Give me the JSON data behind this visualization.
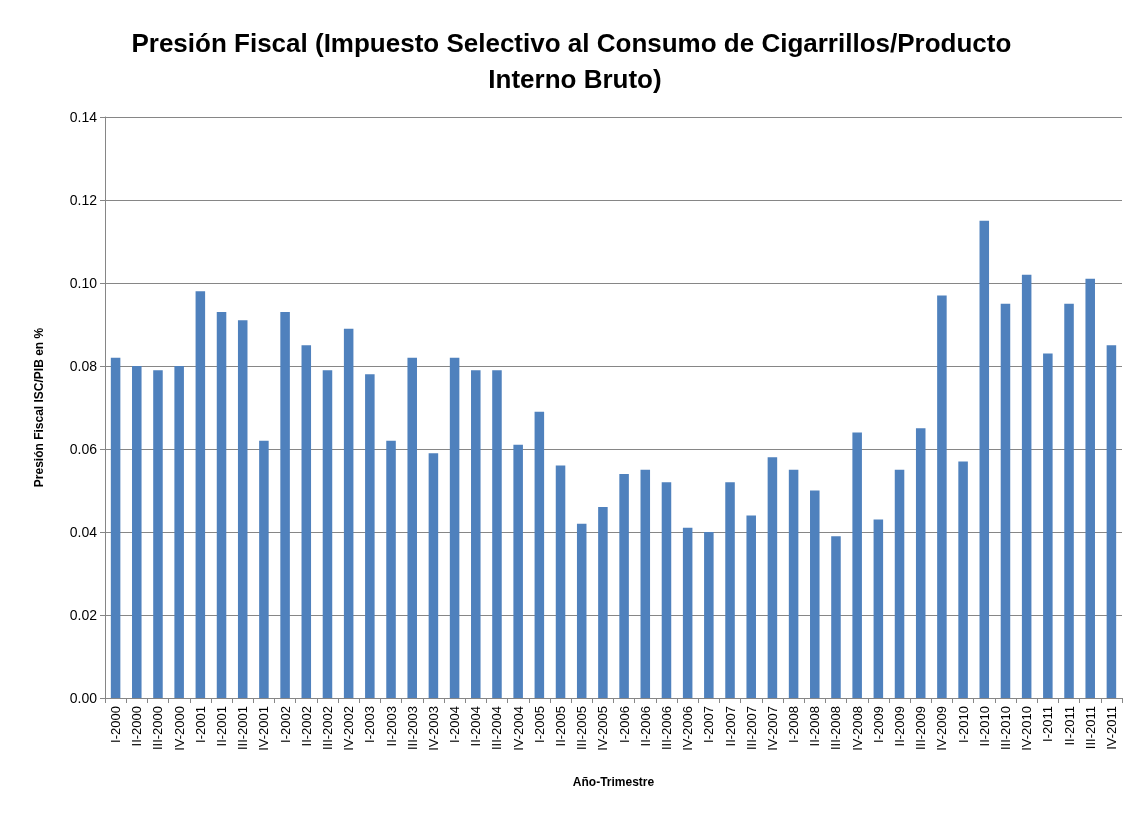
{
  "chart_data": {
    "type": "bar",
    "title": "Presión Fiscal (Impuesto Selectivo al Consumo de Cigarrillos/Producto Interno Bruto)",
    "xlabel": "Año-Trimestre",
    "ylabel": "Presión Fiscal ISC/PIB en %",
    "categories": [
      "I-2000",
      "II-2000",
      "III-2000",
      "IV-2000",
      "I-2001",
      "II-2001",
      "III-2001",
      "IV-2001",
      "I-2002",
      "II-2002",
      "III-2002",
      "IV-2002",
      "I-2003",
      "II-2003",
      "III-2003",
      "IV-2003",
      "I-2004",
      "II-2004",
      "III-2004",
      "IV-2004",
      "I-2005",
      "II-2005",
      "III-2005",
      "IV-2005",
      "I-2006",
      "II-2006",
      "III-2006",
      "IV-2006",
      "I-2007",
      "II-2007",
      "III-2007",
      "IV-2007",
      "I-2008",
      "II-2008",
      "III-2008",
      "IV-2008",
      "I-2009",
      "II-2009",
      "III-2009",
      "IV-2009",
      "I-2010",
      "II-2010",
      "III-2010",
      "IV-2010",
      "I-2011",
      "II-2011",
      "III-2011",
      "IV-2011"
    ],
    "values": [
      0.082,
      0.08,
      0.079,
      0.08,
      0.098,
      0.093,
      0.091,
      0.062,
      0.093,
      0.085,
      0.079,
      0.089,
      0.078,
      0.062,
      0.082,
      0.059,
      0.082,
      0.079,
      0.079,
      0.061,
      0.069,
      0.056,
      0.042,
      0.046,
      0.054,
      0.055,
      0.052,
      0.041,
      0.04,
      0.052,
      0.044,
      0.058,
      0.055,
      0.05,
      0.039,
      0.064,
      0.043,
      0.055,
      0.065,
      0.097,
      0.057,
      0.115,
      0.095,
      0.102,
      0.083,
      0.095,
      0.101,
      0.085
    ],
    "color": "#4f81bd",
    "ylim": [
      0,
      0.14
    ],
    "yticks": [
      {
        "value": 0,
        "label": "0.00"
      },
      0.02,
      0.04,
      0.06,
      0.08,
      {
        "value": 0.1,
        "label": "0.10"
      },
      0.12,
      0.14
    ],
    "grid": "y"
  }
}
